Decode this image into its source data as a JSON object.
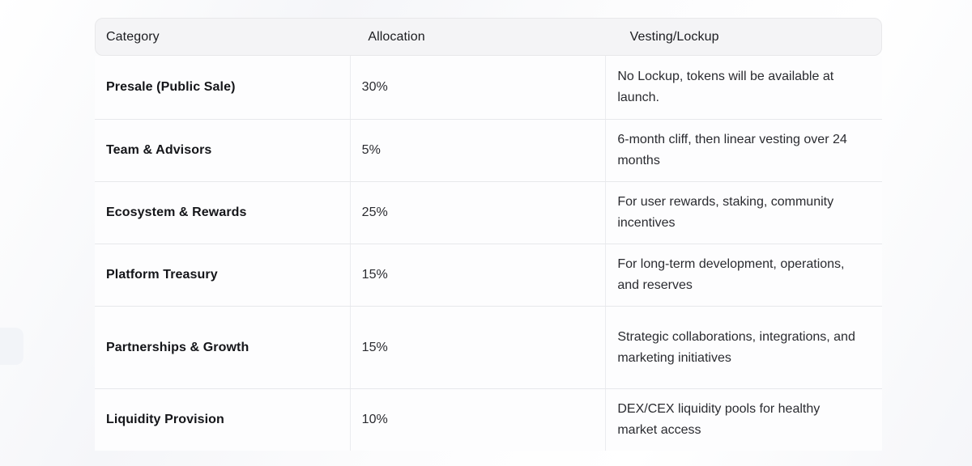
{
  "table": {
    "columns": [
      "Category",
      "Allocation",
      "Vesting/Lockup"
    ],
    "rows": [
      {
        "category": "Presale (Public Sale)",
        "allocation": "30%",
        "vesting": "No Lockup, tokens will be available at launch."
      },
      {
        "category": "Team & Advisors",
        "allocation": "5%",
        "vesting": "6-month cliff, then linear vesting over 24 months"
      },
      {
        "category": "Ecosystem & Rewards",
        "allocation": "25%",
        "vesting": "For user rewards, staking, community incentives"
      },
      {
        "category": "Platform Treasury",
        "allocation": "15%",
        "vesting": "For long-term development, operations, and reserves"
      },
      {
        "category": "Partnerships & Growth",
        "allocation": "15%",
        "vesting": "Strategic collaborations, integrations, and marketing initiatives"
      },
      {
        "category": "Liquidity Provision",
        "allocation": "10%",
        "vesting": "DEX/CEX liquidity pools for healthy market access"
      }
    ],
    "colors": {
      "header_background": "#f4f4f6",
      "header_border": "#e8e8ea",
      "row_background": "#fdfdfe",
      "row_border": "#e7e8eb",
      "category_text": "#141519",
      "body_text": "#2a2b30"
    }
  }
}
